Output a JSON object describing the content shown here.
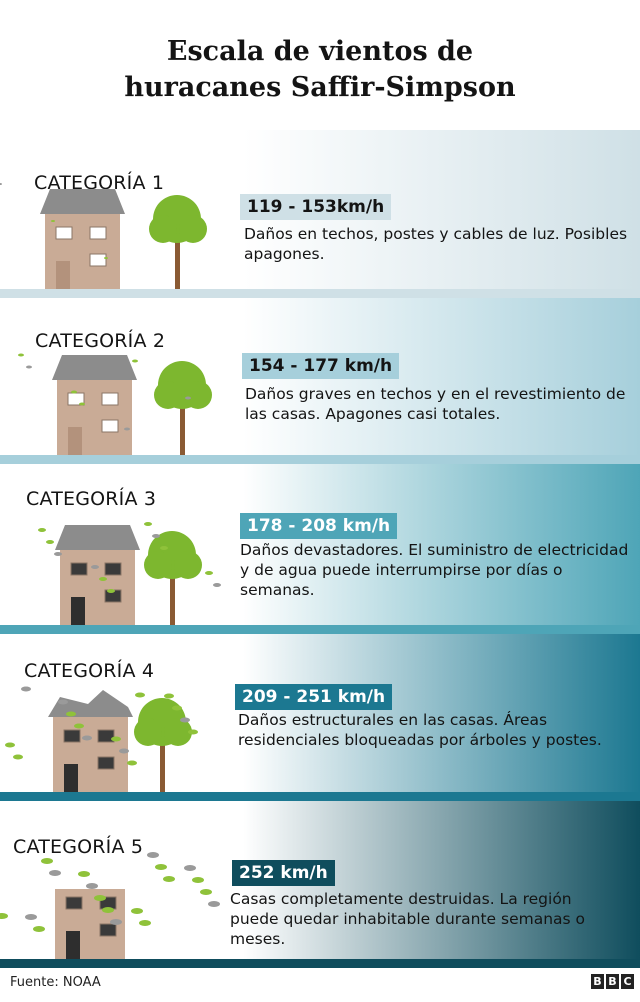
{
  "title_line1": "Escala de vientos de",
  "title_line2": "huracanes Saffir-Simpson",
  "categories": [
    {
      "label": "CATEGORÍA 1",
      "speed": "119 - 153km/h",
      "description": "Daños en techos, postes y cables de luz. Posibles apagones.",
      "color": "#cfe0e6",
      "text_color": "#141414"
    },
    {
      "label": "CATEGORÍA 2",
      "speed": "154 - 177 km/h",
      "description": "Daños graves en techos y en el revestimiento de las casas. Apagones casi totales.",
      "color": "#a6cfdb",
      "text_color": "#141414"
    },
    {
      "label": "CATEGORÍA 3",
      "speed": "178 - 208 km/h",
      "description": "Daños devastadores. El suministro de electricidad y de agua puede interrumpirse por días o semanas.",
      "color": "#4ea5b7",
      "text_color": "#ffffff"
    },
    {
      "label": "CATEGORÍA 4",
      "speed": "209 - 251 km/h",
      "description": "Daños estructurales en las casas. Áreas residenciales bloqueadas por árboles y postes.",
      "color": "#1c7891",
      "text_color": "#ffffff"
    },
    {
      "label": "CATEGORÍA 5",
      "speed": "252 km/h",
      "description": "Casas completamente destruidas. La región puede quedar inhabitable durante semanas o meses.",
      "color": "#0f4d5d",
      "text_color": "#ffffff"
    }
  ],
  "footer": {
    "source": "Fuente: NOAA",
    "logo": "BBC"
  }
}
